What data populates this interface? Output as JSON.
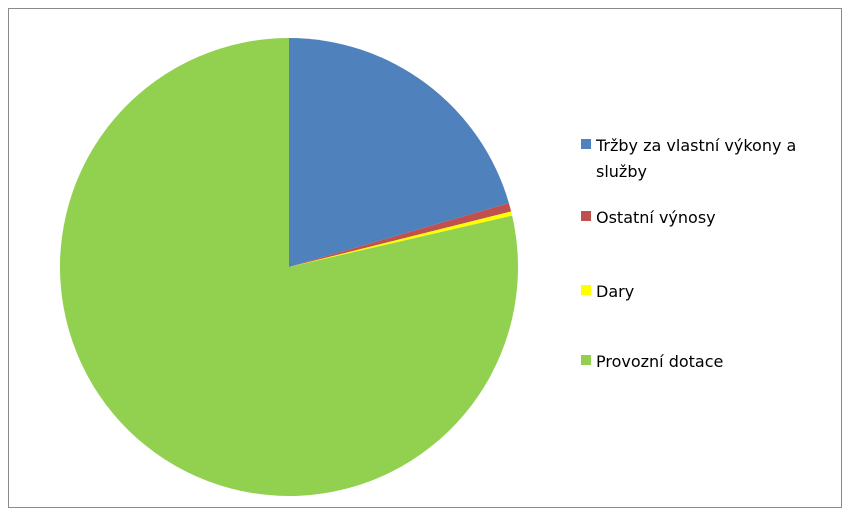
{
  "chart_data": {
    "type": "pie",
    "title": "",
    "start_angle_deg": 0,
    "direction": "clockwise",
    "legend_position": "right",
    "series": [
      {
        "slices": [
          {
            "label": "Tržby za vlastní výkony a služby",
            "value": 20.5,
            "color": "#4F81BD"
          },
          {
            "label": "Ostatní výnosy",
            "value": 0.6,
            "color": "#C0504D"
          },
          {
            "label": "Dary",
            "value": 0.3,
            "color": "#FFFF00"
          },
          {
            "label": "Provozní dotace",
            "value": 78.6,
            "color": "#92D050"
          }
        ]
      }
    ]
  }
}
